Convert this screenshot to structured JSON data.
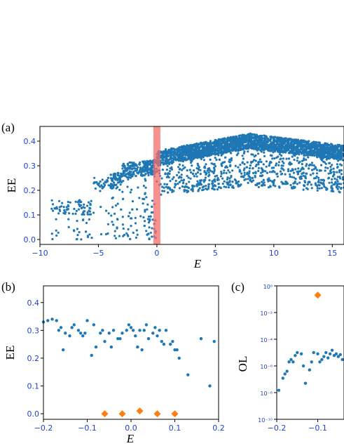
{
  "chart_data": [
    {
      "panel": "(a)",
      "type": "scatter",
      "xlabel": "E",
      "ylabel": "EE",
      "xlim": [
        -10,
        16
      ],
      "ylim": [
        -0.02,
        0.46
      ],
      "xticks": [
        "−10",
        "−5",
        "0",
        "5",
        "10",
        "15"
      ],
      "xtick_values": [
        -10,
        -5,
        0,
        5,
        10,
        15
      ],
      "yticks": [
        "0.0",
        "0.1",
        "0.2",
        "0.3",
        "0.4"
      ],
      "ytick_values": [
        0.0,
        0.1,
        0.2,
        0.3,
        0.4
      ],
      "highlight_band": [
        -0.3,
        0.3
      ],
      "colors": {
        "points": "#1f77b4",
        "band": "#f46b6b"
      }
    },
    {
      "panel": "(b)",
      "type": "scatter",
      "xlabel": "E",
      "ylabel": "EE",
      "xlim": [
        -0.2,
        0.2
      ],
      "ylim": [
        -0.02,
        0.46
      ],
      "xticks": [
        "−0.2",
        "−0.1",
        "0.0",
        "0.1",
        "0.2"
      ],
      "xtick_values": [
        -0.2,
        -0.1,
        0.0,
        0.1,
        0.2
      ],
      "yticks": [
        "0.0",
        "0.1",
        "0.2",
        "0.3",
        "0.4"
      ],
      "ytick_values": [
        0.0,
        0.1,
        0.2,
        0.3,
        0.4
      ],
      "colors": {
        "points": "#1f77b4",
        "diamonds": "#ff7f0e"
      },
      "series": [
        {
          "marker": "dot",
          "x": [
            -0.2,
            -0.19,
            -0.18,
            -0.17,
            -0.165,
            -0.16,
            -0.155,
            -0.15,
            -0.14,
            -0.135,
            -0.13,
            -0.12,
            -0.115,
            -0.11,
            -0.105,
            -0.1,
            -0.09,
            -0.085,
            -0.08,
            -0.07,
            -0.065,
            -0.06,
            -0.05,
            -0.045,
            -0.04,
            -0.03,
            -0.025,
            -0.02,
            -0.01,
            -0.005,
            0.0,
            0.005,
            0.01,
            0.015,
            0.02,
            0.025,
            0.03,
            0.035,
            0.04,
            0.05,
            0.055,
            0.06,
            0.065,
            0.07,
            0.075,
            0.08,
            0.09,
            0.095,
            0.1,
            0.105,
            0.11,
            0.13,
            0.16,
            0.18,
            0.19
          ],
          "y": [
            0.33,
            0.335,
            0.34,
            0.335,
            0.3,
            0.31,
            0.23,
            0.29,
            0.28,
            0.31,
            0.32,
            0.3,
            0.29,
            0.28,
            0.29,
            0.335,
            0.21,
            0.32,
            0.24,
            0.29,
            0.3,
            0.26,
            0.29,
            0.24,
            0.3,
            0.27,
            0.27,
            0.29,
            0.3,
            0.32,
            0.31,
            0.3,
            0.28,
            0.24,
            0.3,
            0.23,
            0.3,
            0.32,
            0.27,
            0.29,
            0.31,
            0.28,
            0.3,
            0.26,
            0.25,
            0.3,
            0.25,
            0.26,
            0.23,
            0.23,
            0.2,
            0.14,
            0.27,
            0.1,
            0.26
          ]
        },
        {
          "marker": "diamond",
          "x": [
            -0.06,
            -0.02,
            0.02,
            0.06,
            0.1
          ],
          "y": [
            0.0,
            0.0,
            0.01,
            0.0,
            0.0
          ]
        }
      ]
    },
    {
      "panel": "(c)",
      "type": "scatter",
      "ylabel": "OL",
      "yscale": "log",
      "xlim": [
        -0.2,
        -0.036
      ],
      "ylim": [
        1e-10,
        1
      ],
      "xticks": [
        "−0.2",
        "−0.1"
      ],
      "xtick_values": [
        -0.2,
        -0.1
      ],
      "yticks": [
        "10⁰",
        "10⁻²",
        "10⁻⁴",
        "10⁻⁶",
        "10⁻⁸",
        "10⁻¹⁰"
      ],
      "ytick_values": [
        1,
        0.01,
        0.0001,
        1e-06,
        1e-08,
        1e-10
      ],
      "colors": {
        "points": "#1f77b4",
        "diamonds": "#ff7f0e"
      },
      "series": [
        {
          "marker": "dot",
          "x": [
            -0.195,
            -0.185,
            -0.18,
            -0.175,
            -0.17,
            -0.165,
            -0.16,
            -0.155,
            -0.15,
            -0.14,
            -0.135,
            -0.13,
            -0.12,
            -0.115,
            -0.11,
            -0.1,
            -0.095,
            -0.09,
            -0.085,
            -0.08,
            -0.075,
            -0.07,
            -0.065,
            -0.06,
            -0.055,
            -0.05,
            -0.045,
            -0.04
          ],
          "y": [
            1.5e-08,
            1.2e-07,
            2.5e-07,
            4e-07,
            2e-06,
            3e-06,
            2e-06,
            6e-06,
            1e-05,
            8e-06,
            1e-06,
            5e-08,
            5e-07,
            2e-06,
            1e-05,
            8e-06,
            2e-06,
            3e-06,
            5e-06,
            1e-05,
            4e-06,
            8e-06,
            1.5e-05,
            6e-06,
            8e-06,
            5e-06,
            7e-06,
            3e-06
          ]
        },
        {
          "marker": "diamond",
          "x": [
            -0.1
          ],
          "y": [
            0.2
          ]
        }
      ]
    }
  ],
  "labels": {
    "panel_a": "(a)",
    "panel_b": "(b)",
    "panel_c": "(c)",
    "a_xlabel": "E",
    "a_ylabel": "EE",
    "b_xlabel": "E",
    "b_ylabel": "EE",
    "c_ylabel": "OL"
  }
}
